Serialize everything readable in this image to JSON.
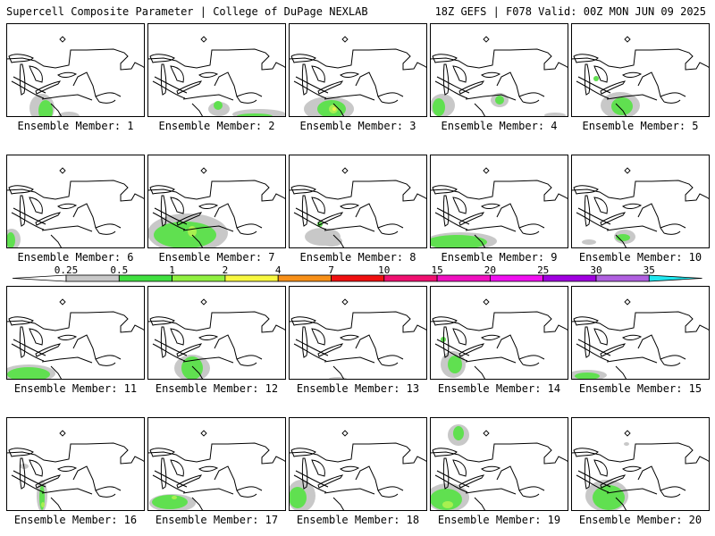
{
  "header": {
    "title": "Supercell Composite Parameter | College of DuPage NEXLAB",
    "run_info": "18Z GEFS | F078 Valid: 00Z MON JUN 09 2025"
  },
  "colorbar": {
    "ticks": [
      "0.25",
      "0.5",
      "1",
      "2",
      "4",
      "7",
      "10",
      "15",
      "20",
      "25",
      "30",
      "35"
    ],
    "colors": [
      "#c8c8c8",
      "#40e040",
      "#90f040",
      "#f8f840",
      "#f89018",
      "#f01010",
      "#f01070",
      "#f010c0",
      "#f010f0",
      "#a000e0",
      "#b060e0",
      "#20e8f0"
    ]
  },
  "map": {
    "contour_colors": [
      "#c8c8c8",
      "#60e050",
      "#a8f050",
      "#f0f050"
    ]
  },
  "panels": [
    {
      "label": "Ensemble Member: 1"
    },
    {
      "label": "Ensemble Member: 2"
    },
    {
      "label": "Ensemble Member: 3"
    },
    {
      "label": "Ensemble Member: 4"
    },
    {
      "label": "Ensemble Member: 5"
    },
    {
      "label": "Ensemble Member: 6"
    },
    {
      "label": "Ensemble Member: 7"
    },
    {
      "label": "Ensemble Member: 8"
    },
    {
      "label": "Ensemble Member: 9"
    },
    {
      "label": "Ensemble Member: 10"
    },
    {
      "label": "Ensemble Member: 11"
    },
    {
      "label": "Ensemble Member: 12"
    },
    {
      "label": "Ensemble Member: 13"
    },
    {
      "label": "Ensemble Member: 14"
    },
    {
      "label": "Ensemble Member: 15"
    },
    {
      "label": "Ensemble Member: 16"
    },
    {
      "label": "Ensemble Member: 17"
    },
    {
      "label": "Ensemble Member: 18"
    },
    {
      "label": "Ensemble Member: 19"
    },
    {
      "label": "Ensemble Member: 20"
    }
  ]
}
